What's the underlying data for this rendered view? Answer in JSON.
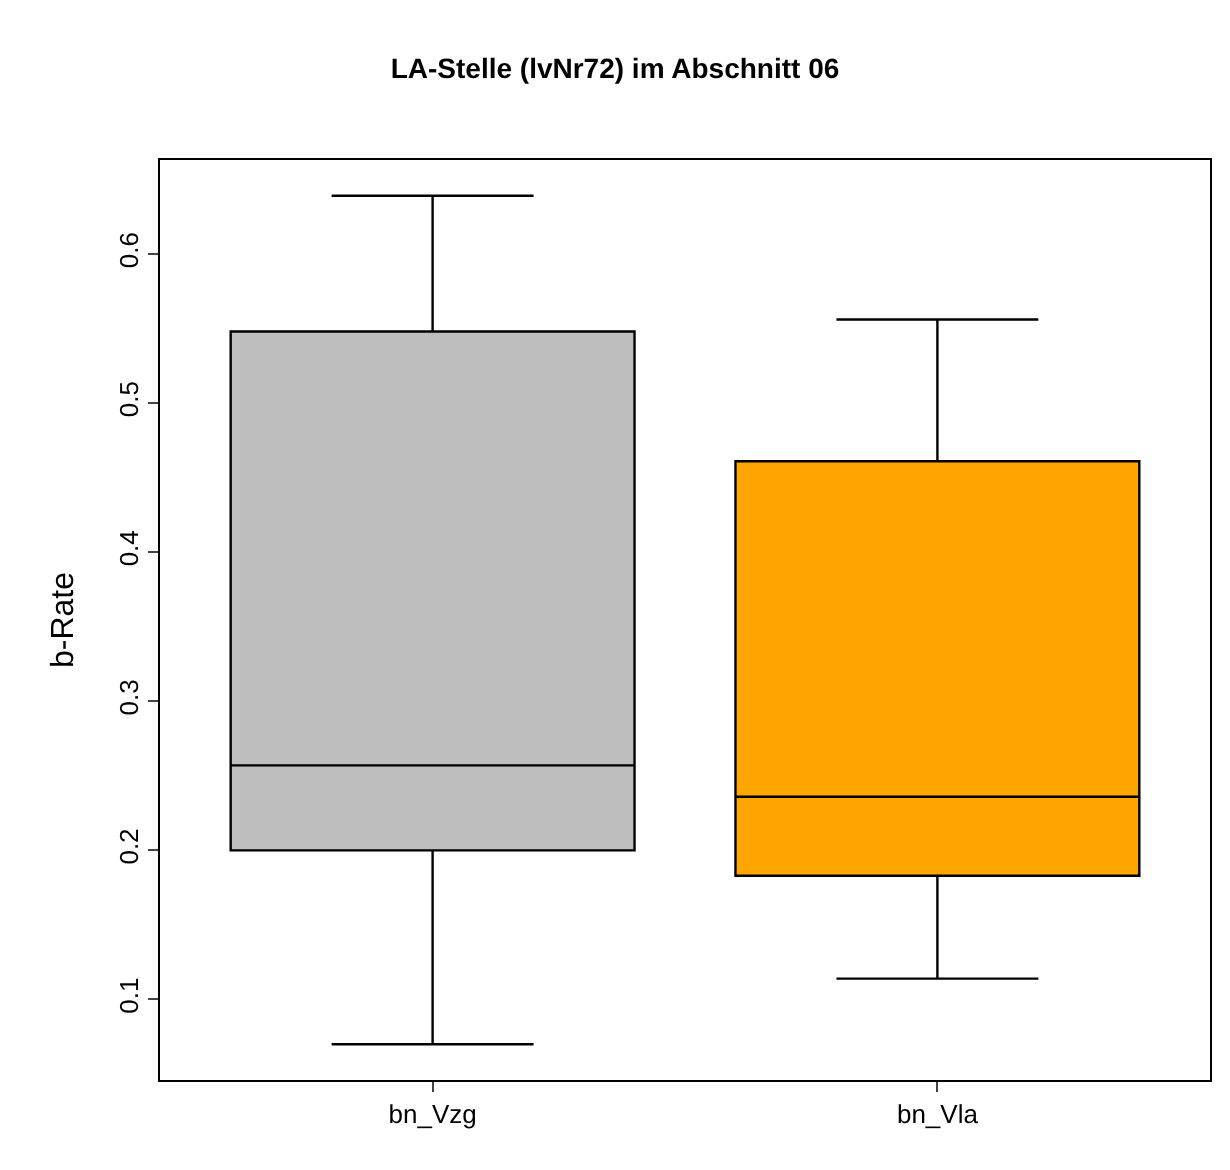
{
  "chart_data": {
    "type": "box",
    "title": "LA-Stelle (lvNr72) im Abschnitt 06",
    "ylabel": "b-Rate",
    "categories": [
      "bn_Vzg",
      "bn_Vla"
    ],
    "boxes": [
      {
        "low": 0.07,
        "q1": 0.2,
        "median": 0.257,
        "q3": 0.548,
        "high": 0.639
      },
      {
        "low": 0.114,
        "q1": 0.183,
        "median": 0.236,
        "q3": 0.461,
        "high": 0.556
      }
    ],
    "colors": [
      "#bebebe",
      "#ffa500"
    ],
    "ylim": [
      0.046,
      0.663
    ],
    "yticks": [
      0.1,
      0.2,
      0.3,
      0.4,
      0.5,
      0.6
    ]
  }
}
